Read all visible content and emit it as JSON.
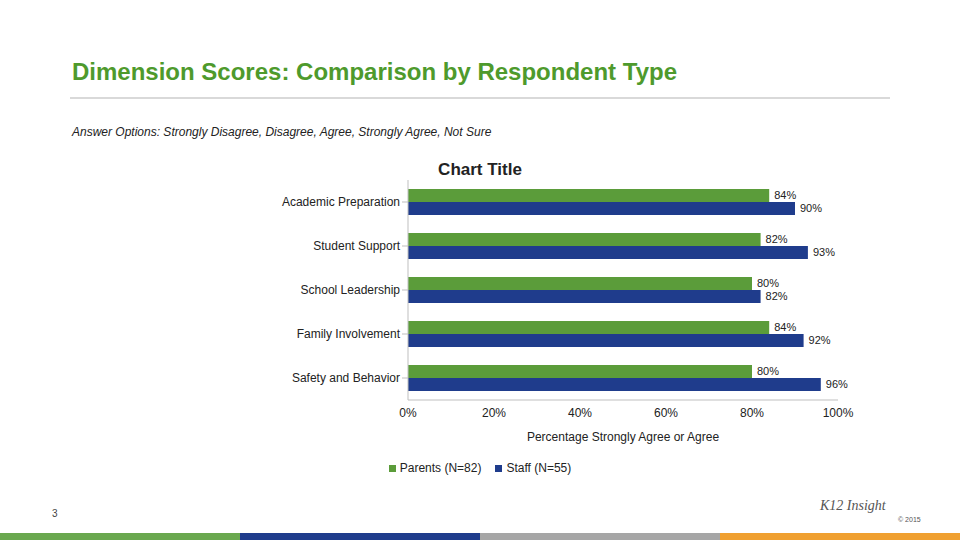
{
  "slide": {
    "title": "Dimension Scores: Comparison by Respondent Type",
    "subtitle": "Answer Options: Strongly Disagree, Disagree, Agree, Strongly Agree, Not Sure",
    "page_number": "3",
    "logo": "K12 Insight",
    "copyright": "© 2015"
  },
  "chart_data": {
    "type": "bar",
    "orientation": "horizontal",
    "title": "Chart Title",
    "x_label": "Percentage Strongly Agree or Agree",
    "categories": [
      "Academic Preparation",
      "Student Support",
      "School Leadership",
      "Family Involvement",
      "Safety and Behavior"
    ],
    "series": [
      {
        "name": "Parents (N=82)",
        "color": "#5b9c3a",
        "values": [
          84,
          82,
          80,
          84,
          80
        ],
        "value_labels": [
          "84%",
          "82%",
          "80%",
          "84%",
          "80%"
        ]
      },
      {
        "name": "Staff (N=55)",
        "color": "#1f3c8c",
        "values": [
          90,
          93,
          82,
          92,
          96
        ],
        "value_labels": [
          "90%",
          "93%",
          "82%",
          "92%",
          "96%"
        ]
      }
    ],
    "xlim": [
      0,
      100
    ],
    "xticks": [
      {
        "value": 0,
        "label": "0%"
      },
      {
        "value": 20,
        "label": "20%"
      },
      {
        "value": 40,
        "label": "40%"
      },
      {
        "value": 60,
        "label": "60%"
      },
      {
        "value": 80,
        "label": "80%"
      },
      {
        "value": 100,
        "label": "100%"
      }
    ],
    "grid": false,
    "legend": "bottom",
    "data_labels": true
  }
}
